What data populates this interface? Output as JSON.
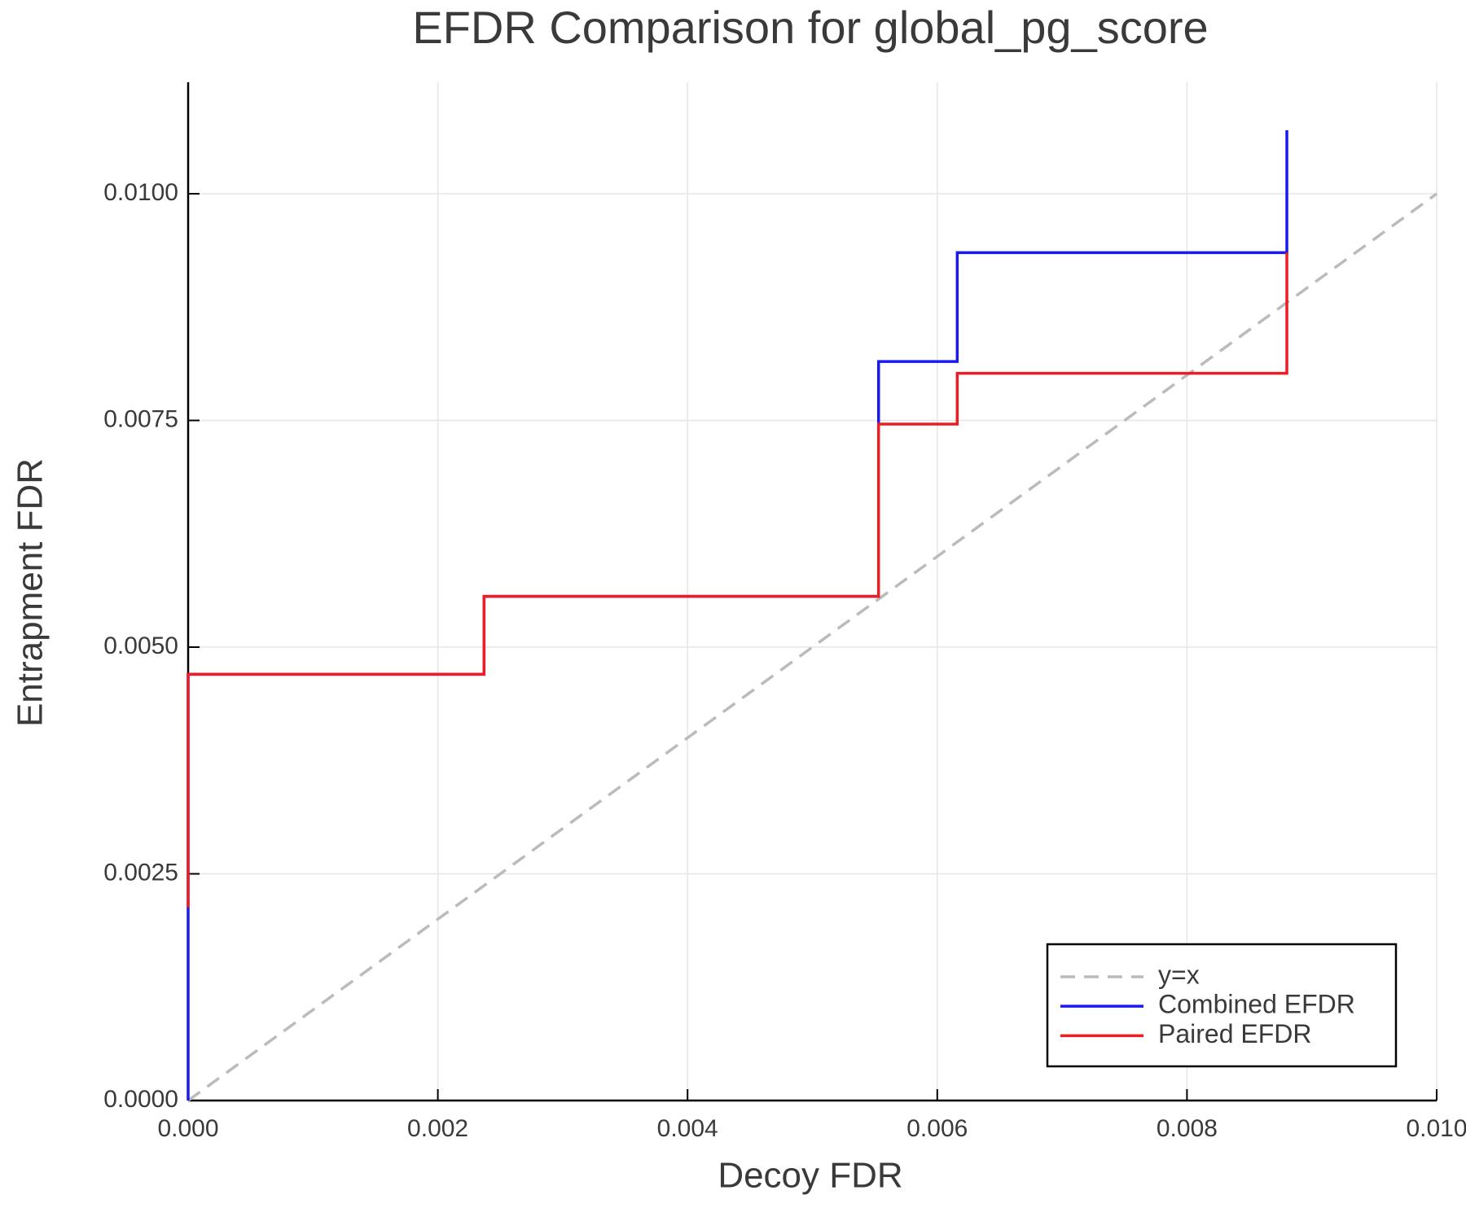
{
  "chart_data": {
    "type": "line",
    "title": "EFDR Comparison for global_pg_score",
    "x_label": "Decoy FDR",
    "y_label": "Entrapment FDR",
    "xlim": [
      0,
      0.01
    ],
    "ylim": [
      0,
      0.01123
    ],
    "xticks": [
      {
        "value": 0,
        "label": "0.000"
      },
      {
        "value": 0.002,
        "label": "0.002"
      },
      {
        "value": 0.004,
        "label": "0.004"
      },
      {
        "value": 0.006,
        "label": "0.006"
      },
      {
        "value": 0.008,
        "label": "0.008"
      },
      {
        "value": 0.01,
        "label": "0.010"
      }
    ],
    "yticks": [
      {
        "value": 0,
        "label": "0.0000"
      },
      {
        "value": 0.0025,
        "label": "0.0025"
      },
      {
        "value": 0.005,
        "label": "0.0050"
      },
      {
        "value": 0.0075,
        "label": "0.0075"
      },
      {
        "value": 0.01,
        "label": "0.0100"
      }
    ],
    "grid": true,
    "legend": "lower right",
    "series": [
      {
        "name": "y=x",
        "color": "#bbbbbb",
        "dashed": true,
        "x": [
          0,
          0.01
        ],
        "values": [
          0,
          0.01
        ]
      },
      {
        "name": "Combined EFDR",
        "color": "#1a1aee",
        "dashed": false,
        "x": [
          0,
          0,
          0.00237,
          0.00237,
          0.00553,
          0.00553,
          0.00616,
          0.00616,
          0.0088,
          0.0088
        ],
        "values": [
          0,
          0.0047,
          0.0047,
          0.00556,
          0.00556,
          0.00815,
          0.00815,
          0.00935,
          0.00935,
          0.0107
        ]
      },
      {
        "name": "Paired EFDR",
        "color": "#ee1c24",
        "dashed": false,
        "x": [
          0,
          0,
          0.00237,
          0.00237,
          0.00553,
          0.00553,
          0.00616,
          0.00616,
          0.0088,
          0.0088
        ],
        "values": [
          0.00213,
          0.0047,
          0.0047,
          0.00556,
          0.00556,
          0.00746,
          0.00746,
          0.00802,
          0.00802,
          0.00935
        ]
      }
    ]
  }
}
